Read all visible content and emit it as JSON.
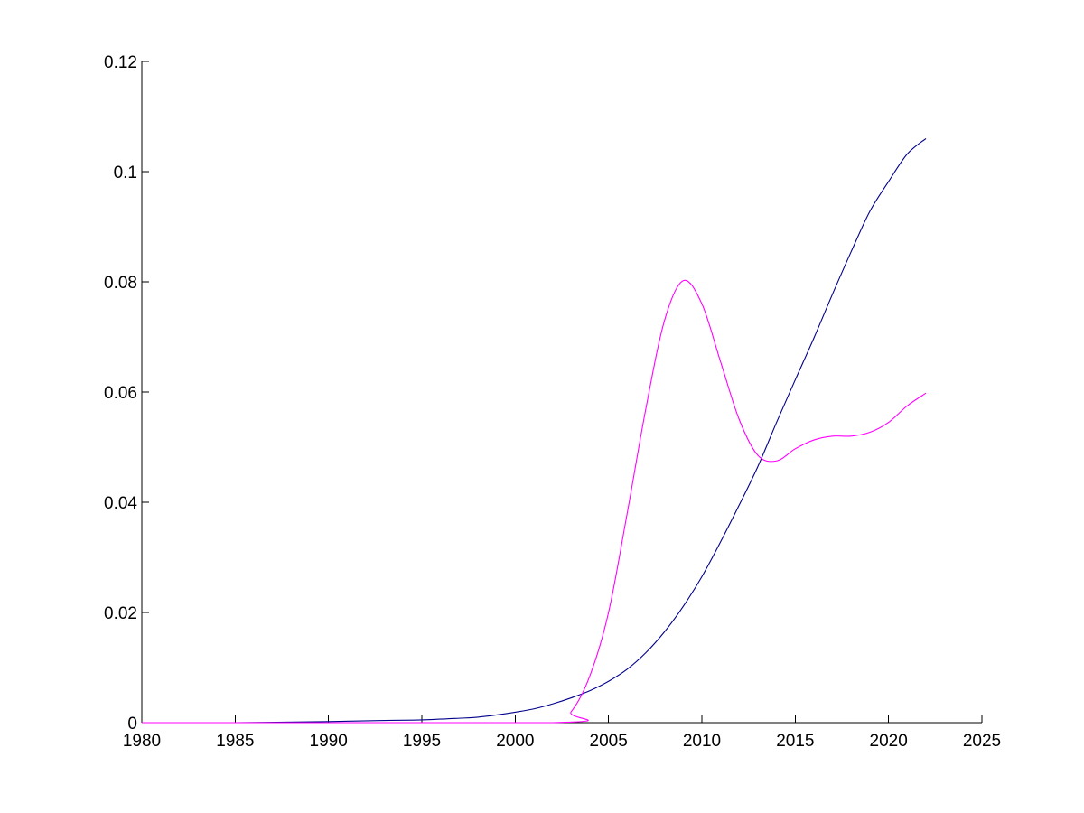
{
  "chart_data": {
    "type": "line",
    "title": "",
    "xlabel": "",
    "ylabel": "",
    "xlim": [
      1980,
      2025
    ],
    "ylim": [
      0,
      0.12
    ],
    "grid": false,
    "legend": "none",
    "x_ticks": [
      "1980",
      "1985",
      "1990",
      "1995",
      "2000",
      "2005",
      "2010",
      "2015",
      "2020",
      "2025"
    ],
    "y_ticks": [
      "0",
      "0.02",
      "0.04",
      "0.06",
      "0.08",
      "0.1",
      "0.12"
    ],
    "x_tick_values": [
      1980,
      1985,
      1990,
      1995,
      2000,
      2005,
      2010,
      2015,
      2020,
      2025
    ],
    "y_tick_values": [
      0,
      0.02,
      0.04,
      0.06,
      0.08,
      0.1,
      0.12
    ],
    "series": [
      {
        "color": "#00008b",
        "x": [
          1980,
          1985,
          1990,
          1993,
          1995,
          1997,
          1998,
          1999,
          2000,
          2001,
          2002,
          2003,
          2004,
          2005,
          2006,
          2007,
          2008,
          2009,
          2010,
          2011,
          2012,
          2013,
          2014,
          2015,
          2016,
          2017,
          2018,
          2019,
          2020,
          2021,
          2022
        ],
        "y": [
          0,
          0,
          0.0002,
          0.0004,
          0.0005,
          0.0008,
          0.001,
          0.0014,
          0.0019,
          0.0025,
          0.0034,
          0.0045,
          0.0058,
          0.0075,
          0.0097,
          0.0127,
          0.0165,
          0.0211,
          0.0265,
          0.0328,
          0.0395,
          0.0465,
          0.0545,
          0.0622,
          0.0698,
          0.0778,
          0.0855,
          0.0928,
          0.0982,
          0.1032,
          0.106
        ]
      },
      {
        "color": "#ff00ff",
        "x": [
          1980,
          2002,
          2003,
          2004,
          2005,
          2006,
          2007,
          2008,
          2009,
          2010,
          2011,
          2012,
          2013,
          2014,
          2015,
          2016,
          2017,
          2018,
          2019,
          2020,
          2021,
          2022
        ],
        "y": [
          0,
          0,
          0.002,
          0.0085,
          0.02,
          0.038,
          0.057,
          0.073,
          0.0802,
          0.076,
          0.0655,
          0.055,
          0.0485,
          0.0475,
          0.0497,
          0.0513,
          0.052,
          0.052,
          0.0527,
          0.0545,
          0.0575,
          0.0598
        ]
      }
    ]
  }
}
